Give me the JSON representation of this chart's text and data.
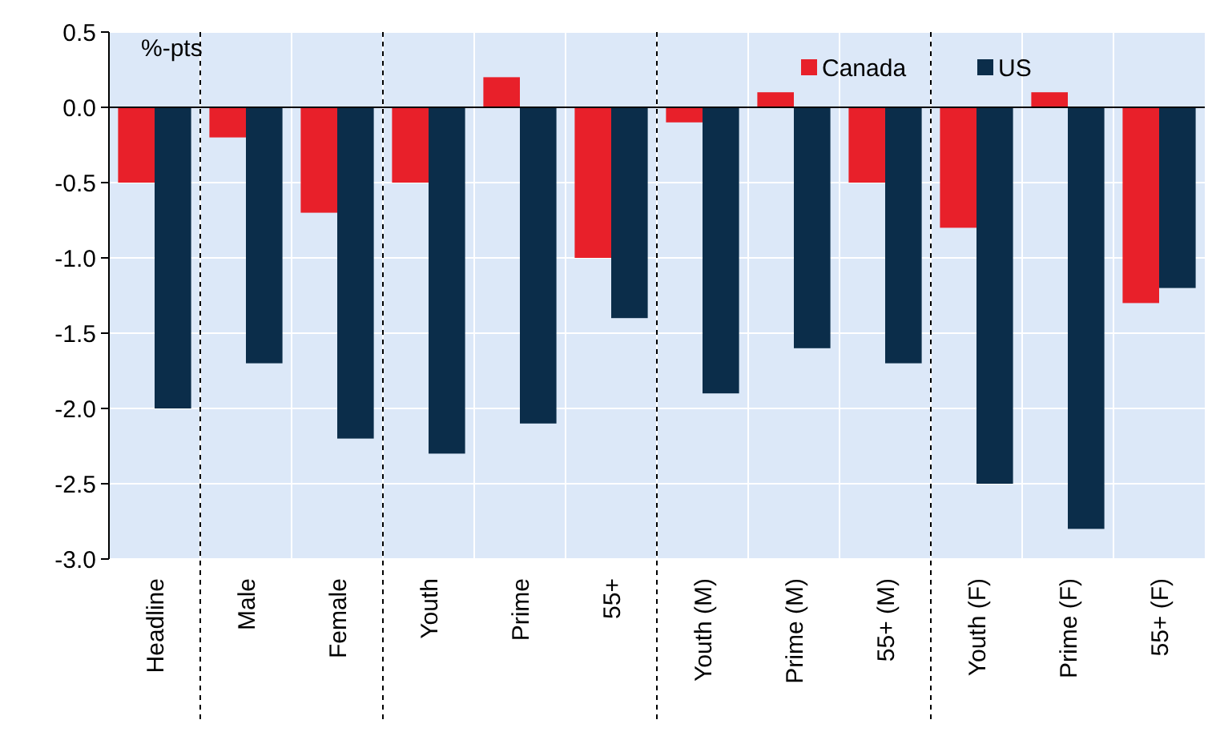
{
  "chart_data": {
    "type": "bar",
    "ylabel": "%-pts",
    "categories": [
      "Headline",
      "Male",
      "Female",
      "Youth",
      "Prime",
      "55+",
      "Youth (M)",
      "Prime (M)",
      "55+ (M)",
      "Youth (F)",
      "Prime (F)",
      "55+ (F)"
    ],
    "series": [
      {
        "name": "Canada",
        "color": "#e8202a",
        "values": [
          -0.5,
          -0.2,
          -0.7,
          -0.5,
          0.2,
          -1.0,
          -0.1,
          0.1,
          -0.5,
          -0.8,
          0.1,
          -1.3
        ]
      },
      {
        "name": "US",
        "color": "#0b2d4a",
        "values": [
          -2.0,
          -1.7,
          -2.2,
          -2.3,
          -2.1,
          -1.4,
          -1.9,
          -1.6,
          -1.7,
          -2.5,
          -2.8,
          -1.2
        ]
      }
    ],
    "ylim": [
      -3.0,
      0.5
    ],
    "yticks": [
      0.5,
      {
        "value": 0,
        "label": "0.0"
      },
      -0.5,
      {
        "value": -1,
        "label": "-1.0"
      },
      -1.5,
      {
        "value": -2,
        "label": "-2.0"
      },
      -2.5,
      {
        "value": -3,
        "label": "-3.0"
      }
    ],
    "grid": true,
    "legend": "top right"
  }
}
